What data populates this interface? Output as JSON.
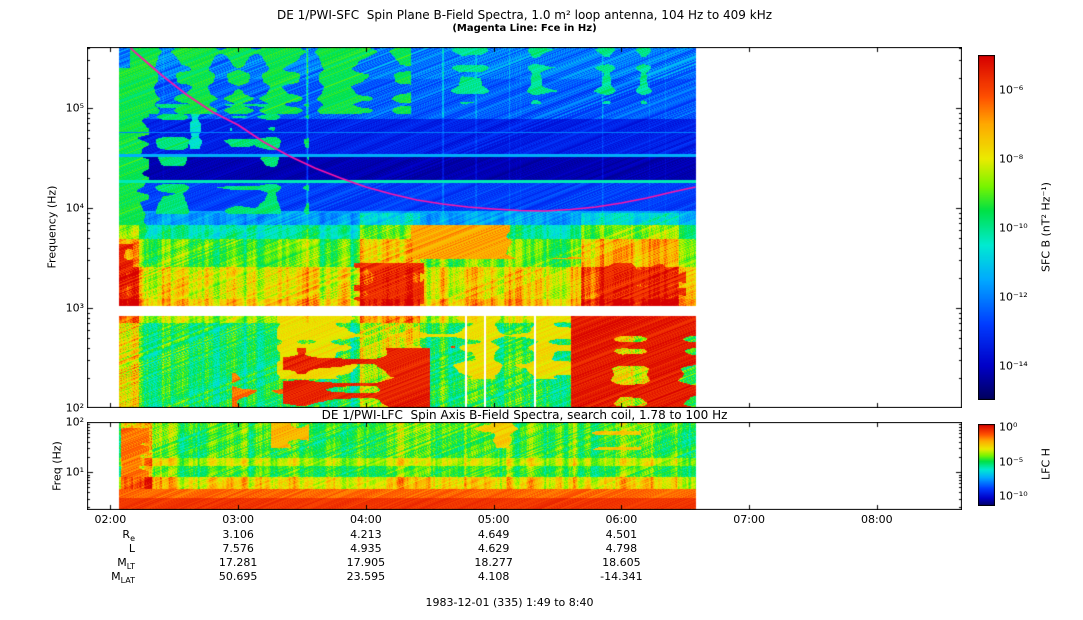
{
  "figure": {
    "background": "#ffffff",
    "axis_color": "#000000"
  },
  "footer": {
    "date_line": "1983-12-01 (335) 1:49 to 8:40"
  },
  "ephemeris": {
    "value_tick_hours": [
      3,
      4,
      5,
      6
    ],
    "rows": [
      {
        "label_main": "R",
        "label_sub": "e",
        "values": [
          "3.106",
          "4.213",
          "4.649",
          "4.501"
        ]
      },
      {
        "label_main": "L",
        "label_sub": "",
        "values": [
          "7.576",
          "4.935",
          "4.629",
          "4.798"
        ]
      },
      {
        "label_main": "M",
        "label_sub": "LT",
        "values": [
          "17.281",
          "17.905",
          "18.277",
          "18.605"
        ]
      },
      {
        "label_main": "M",
        "label_sub": "LAT",
        "values": [
          "50.695",
          "23.595",
          "4.108",
          "-14.341"
        ]
      }
    ]
  },
  "colormap_stops": [
    [
      0.0,
      0,
      0,
      90
    ],
    [
      0.1,
      0,
      0,
      200
    ],
    [
      0.22,
      0,
      60,
      255
    ],
    [
      0.35,
      0,
      170,
      255
    ],
    [
      0.45,
      0,
      235,
      210
    ],
    [
      0.55,
      0,
      225,
      70
    ],
    [
      0.62,
      120,
      245,
      0
    ],
    [
      0.7,
      235,
      235,
      0
    ],
    [
      0.8,
      255,
      170,
      0
    ],
    [
      0.88,
      255,
      80,
      0
    ],
    [
      1.0,
      215,
      0,
      0
    ]
  ],
  "chart_data": [
    {
      "type": "heatmap",
      "id": "sfc",
      "title": "DE 1/PWI-SFC  Spin Plane B-Field Spectra, 1.0 m² loop antenna, 104 Hz to 409 kHz",
      "subtitle": "(Magenta Line: Fce in Hz)",
      "ylabel": "Frequency (Hz)",
      "ylog10_range": [
        2.0,
        5.61
      ],
      "yticks": [
        {
          "v": 5,
          "label": "10⁵"
        },
        {
          "v": 4,
          "label": "10⁴"
        },
        {
          "v": 3,
          "label": "10³"
        },
        {
          "v": 2,
          "label": "10²"
        }
      ],
      "x_hours_range": [
        1.8167,
        8.6667
      ],
      "xticks": [
        {
          "h": 2,
          "label": "02:00"
        },
        {
          "h": 3,
          "label": "03:00"
        },
        {
          "h": 4,
          "label": "04:00"
        },
        {
          "h": 5,
          "label": "05:00"
        },
        {
          "h": 6,
          "label": "06:00"
        },
        {
          "h": 7,
          "label": "07:00"
        },
        {
          "h": 8,
          "label": "08:00"
        }
      ],
      "data_hours": [
        2.06,
        6.58
      ],
      "colorbar": {
        "label": "SFC B (nT² Hz⁻¹)",
        "log10_range": [
          -5,
          -15
        ],
        "ticks": [
          {
            "v": -6,
            "label": "10⁻⁶"
          },
          {
            "v": -8,
            "label": "10⁻⁸"
          },
          {
            "v": -10,
            "label": "10⁻¹⁰"
          },
          {
            "v": -12,
            "label": "10⁻¹²"
          },
          {
            "v": -14,
            "label": "10⁻¹⁴"
          }
        ]
      },
      "white_gap_log10": [
        2.93,
        3.02
      ],
      "white_cols": [
        {
          "h": 4.78,
          "hw": 0.01,
          "u0": 2.0,
          "u1": 2.93
        },
        {
          "h": 4.93,
          "hw": 0.01,
          "u0": 2.0,
          "u1": 2.93
        },
        {
          "h": 5.32,
          "hw": 0.01,
          "u0": 2.0,
          "u1": 2.93
        }
      ],
      "mod_range": [
        2.0,
        3.95
      ],
      "streak_add": true,
      "bands": [
        {
          "u0": 5.3,
          "u1": 5.61,
          "v": 0.3,
          "n": 0.1
        },
        {
          "u0": 4.9,
          "u1": 5.3,
          "v": 0.26,
          "n": 0.08
        },
        {
          "u0": 4.52,
          "u1": 4.9,
          "v": 0.17,
          "n": 0.05
        },
        {
          "u0": 4.26,
          "u1": 4.52,
          "v": 0.08,
          "n": 0.03
        },
        {
          "u0": 3.98,
          "u1": 4.26,
          "v": 0.22,
          "n": 0.05
        },
        {
          "u0": 3.84,
          "u1": 3.98,
          "v": 0.35,
          "n": 0.06
        },
        {
          "u0": 3.7,
          "u1": 3.84,
          "v": 0.5,
          "n": 0.06
        },
        {
          "u0": 3.42,
          "u1": 3.7,
          "v": 0.62,
          "n": 0.07
        },
        {
          "u0": 3.1,
          "u1": 3.42,
          "v": 0.74,
          "n": 0.09
        },
        {
          "u0": 3.02,
          "u1": 3.1,
          "v": 0.8,
          "n": 0.06
        },
        {
          "u0": 2.86,
          "u1": 2.93,
          "v": 0.68,
          "n": 0.06
        },
        {
          "u0": 2.0,
          "u1": 2.86,
          "v": 0.56,
          "n": 0.1
        }
      ],
      "spectral_lines": [
        {
          "u": 4.27,
          "v": 0.47,
          "hw": 0.015
        },
        {
          "u": 4.53,
          "v": 0.36,
          "hw": 0.011
        },
        {
          "u": 4.76,
          "v": 0.3,
          "hw": 0.008
        }
      ],
      "streak_boost": [
        {
          "h0": 2.06,
          "h1": 2.22,
          "b": 0.22
        },
        {
          "h0": 3.95,
          "h1": 4.42,
          "b": 0.22
        },
        {
          "h0": 5.68,
          "h1": 6.45,
          "b": 0.22
        }
      ],
      "blobs": [
        {
          "h0": 2.15,
          "h1": 4.35,
          "u0": 4.95,
          "u1": 5.61,
          "v": 0.55,
          "cov": 0.55,
          "seed": 1
        },
        {
          "h0": 4.35,
          "h1": 6.55,
          "u0": 5.05,
          "u1": 5.61,
          "v": 0.5,
          "cov": 0.28,
          "seed": 2
        },
        {
          "h0": 2.3,
          "h1": 3.6,
          "u0": 4.6,
          "u1": 5.0,
          "v": 0.45,
          "cov": 0.3,
          "seed": 13
        },
        {
          "h0": 2.3,
          "h1": 3.55,
          "u0": 3.95,
          "u1": 5.05,
          "v": 0.52,
          "cov": 0.27,
          "seed": 14
        },
        {
          "h0": 4.35,
          "h1": 5.75,
          "u0": 3.5,
          "u1": 3.84,
          "v": 0.8,
          "cov": 0.55,
          "seed": 3
        },
        {
          "h0": 3.9,
          "h1": 4.45,
          "u0": 2.97,
          "u1": 3.45,
          "v": 0.93,
          "cov": 0.55,
          "seed": 4
        },
        {
          "h0": 5.68,
          "h1": 6.5,
          "u0": 2.97,
          "u1": 3.45,
          "v": 0.93,
          "cov": 0.55,
          "seed": 5
        },
        {
          "h0": 3.35,
          "h1": 4.5,
          "u0": 2.0,
          "u1": 2.6,
          "v": 0.95,
          "cov": 0.55,
          "seed": 6
        },
        {
          "h0": 4.5,
          "h1": 5.15,
          "u0": 2.0,
          "u1": 2.75,
          "v": 0.92,
          "cov": 0.45,
          "seed": 7
        },
        {
          "h0": 5.6,
          "h1": 6.58,
          "u0": 2.0,
          "u1": 2.92,
          "v": 0.96,
          "cov": 0.65,
          "seed": 8
        },
        {
          "h0": 2.95,
          "h1": 3.35,
          "u0": 2.0,
          "u1": 2.35,
          "v": 0.85,
          "cov": 0.4,
          "seed": 9
        },
        {
          "h0": 3.3,
          "h1": 5.6,
          "u0": 2.3,
          "u1": 2.92,
          "v": 0.72,
          "cov": 0.5,
          "seed": 10
        },
        {
          "h0": 2.06,
          "h1": 2.17,
          "u0": 2.97,
          "u1": 3.65,
          "v": 0.95,
          "cov": 0.8,
          "seed": 11
        },
        {
          "h0": 2.06,
          "h1": 2.3,
          "u0": 3.6,
          "u1": 5.4,
          "v": 0.55,
          "cov": 0.5,
          "seed": 12
        }
      ],
      "fce_line": {
        "label": "Fce",
        "color": "#ff14aa",
        "points": [
          [
            2.06,
            5.72
          ],
          [
            2.2,
            5.55
          ],
          [
            2.4,
            5.33
          ],
          [
            2.6,
            5.13
          ],
          [
            2.8,
            4.96
          ],
          [
            3.0,
            4.83
          ],
          [
            3.2,
            4.66
          ],
          [
            3.4,
            4.52
          ],
          [
            3.6,
            4.4
          ],
          [
            3.8,
            4.3
          ],
          [
            4.0,
            4.21
          ],
          [
            4.2,
            4.14
          ],
          [
            4.4,
            4.08
          ],
          [
            4.6,
            4.04
          ],
          [
            4.8,
            4.01
          ],
          [
            5.0,
            3.99
          ],
          [
            5.2,
            3.975
          ],
          [
            5.4,
            3.97
          ],
          [
            5.6,
            3.985
          ],
          [
            5.8,
            4.01
          ],
          [
            6.0,
            4.05
          ],
          [
            6.2,
            4.1
          ],
          [
            6.4,
            4.16
          ],
          [
            6.58,
            4.21
          ]
        ]
      }
    },
    {
      "type": "heatmap",
      "id": "lfc",
      "title": "DE 1/PWI-LFC  Spin Axis B-Field Spectra, search coil, 1.78 to 100 Hz",
      "ylabel": "Freq (Hz)",
      "ylog10_range": [
        0.25,
        2.0
      ],
      "yticks": [
        {
          "v": 2,
          "label": "10²"
        },
        {
          "v": 1,
          "label": "10¹"
        }
      ],
      "x_hours_range": [
        1.8167,
        8.6667
      ],
      "xticks": [
        {
          "h": 2,
          "label": "02:00"
        },
        {
          "h": 3,
          "label": "03:00"
        },
        {
          "h": 4,
          "label": "04:00"
        },
        {
          "h": 5,
          "label": "05:00"
        },
        {
          "h": 6,
          "label": "06:00"
        },
        {
          "h": 7,
          "label": "07:00"
        },
        {
          "h": 8,
          "label": "08:00"
        }
      ],
      "data_hours": [
        2.06,
        6.58
      ],
      "colorbar": {
        "label": "LFC H",
        "log10_range": [
          0.5,
          -11.5
        ],
        "ticks": [
          {
            "v": 0,
            "label": "10⁰"
          },
          {
            "v": -5,
            "label": "10⁻⁵"
          },
          {
            "v": -10,
            "label": "10⁻¹⁰"
          }
        ]
      },
      "mod_range": [
        0.68,
        2.0
      ],
      "streak_add": false,
      "bands": [
        {
          "u0": 1.8,
          "u1": 2.0,
          "v": 0.6,
          "n": 0.08
        },
        {
          "u0": 1.3,
          "u1": 1.8,
          "v": 0.58,
          "n": 0.09
        },
        {
          "u0": 1.14,
          "u1": 1.3,
          "v": 0.68,
          "n": 0.05
        },
        {
          "u0": 0.92,
          "u1": 1.14,
          "v": 0.58,
          "n": 0.07
        },
        {
          "u0": 0.68,
          "u1": 0.92,
          "v": 0.74,
          "n": 0.06
        },
        {
          "u0": 0.5,
          "u1": 0.68,
          "v": 0.86,
          "n": 0.04
        },
        {
          "u0": 0.25,
          "u1": 0.5,
          "v": 0.92,
          "n": 0.03
        }
      ],
      "streak_boost": [
        {
          "h0": 2.08,
          "h1": 2.32,
          "b": 0.2
        }
      ],
      "blobs": [
        {
          "h0": 2.08,
          "h1": 2.3,
          "u0": 0.6,
          "u1": 1.9,
          "v": 0.85,
          "cov": 0.45,
          "seed": 21
        },
        {
          "h0": 3.25,
          "h1": 3.55,
          "u0": 1.5,
          "u1": 2.0,
          "v": 0.78,
          "cov": 0.55,
          "seed": 22
        },
        {
          "h0": 4.85,
          "h1": 5.2,
          "u0": 1.5,
          "u1": 2.0,
          "v": 0.75,
          "cov": 0.5,
          "seed": 23
        },
        {
          "h0": 5.75,
          "h1": 6.15,
          "u0": 1.45,
          "u1": 2.0,
          "v": 0.75,
          "cov": 0.5,
          "seed": 24
        }
      ]
    }
  ]
}
